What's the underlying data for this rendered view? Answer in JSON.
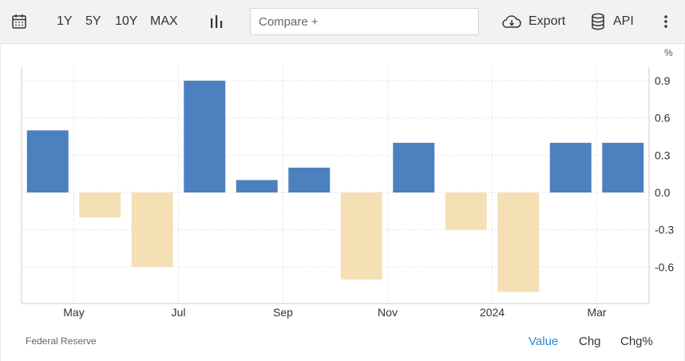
{
  "toolbar": {
    "icons": {
      "calendar": "calendar-icon",
      "chart_type": "bar-chart-icon",
      "export": "cloud-download-icon",
      "api": "database-icon",
      "more": "more-vertical-icon"
    },
    "ranges": [
      "1Y",
      "5Y",
      "10Y",
      "MAX"
    ],
    "compare_placeholder": "Compare +",
    "export_label": "Export",
    "api_label": "API"
  },
  "chart_data": {
    "type": "bar",
    "unit_label": "%",
    "x": [
      "2023-04",
      "2023-05",
      "2023-06",
      "2023-07",
      "2023-08",
      "2023-09",
      "2023-10",
      "2023-11",
      "2023-12",
      "2024-01",
      "2024-02",
      "2024-03"
    ],
    "values": [
      0.5,
      -0.2,
      -0.6,
      0.9,
      0.1,
      0.2,
      -0.7,
      0.4,
      -0.3,
      -0.8,
      0.4,
      0.4
    ],
    "x_tick_labels": [
      {
        "at": "2023-05",
        "label": "May"
      },
      {
        "at": "2023-07",
        "label": "Jul"
      },
      {
        "at": "2023-09",
        "label": "Sep"
      },
      {
        "at": "2023-11",
        "label": "Nov"
      },
      {
        "at": "2024-01",
        "label": "2024"
      },
      {
        "at": "2024-03",
        "label": "Mar"
      }
    ],
    "y_ticks": [
      0.9,
      0.6,
      0.3,
      0.0,
      -0.3,
      -0.6
    ],
    "y_tick_labels": [
      "0.9",
      "0.6",
      "0.3",
      "0.0",
      "-0.3",
      "-0.6"
    ],
    "ylim": [
      -0.9,
      0.95
    ],
    "grid": true,
    "y_axis_position": "right",
    "colors": {
      "positive": "#4d80bf",
      "negative": "#f5dfb5",
      "grid": "#e6e6e6",
      "axis": "#cccccc"
    }
  },
  "footer": {
    "source": "Federal Reserve",
    "tabs": [
      "Value",
      "Chg",
      "Chg%"
    ],
    "active_tab": "Value",
    "active_color": "#2a8ad4"
  }
}
